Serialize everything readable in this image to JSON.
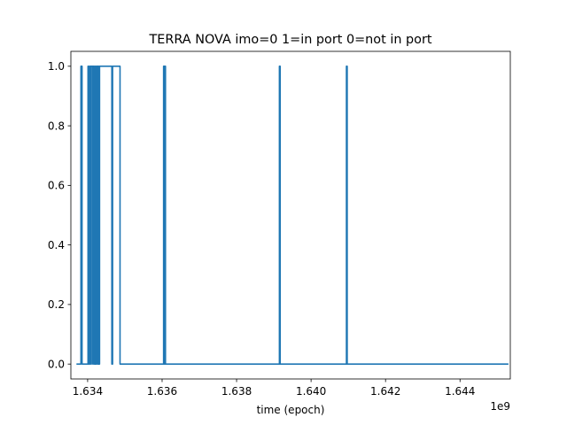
{
  "chart_data": {
    "type": "line",
    "title": "TERRA NOVA imo=0 1=in port 0=not in port",
    "xlabel": "time (epoch)",
    "ylabel": "",
    "x_offset_label": "1e9",
    "xlim": [
      1633550000,
      1645350000
    ],
    "ylim": [
      -0.05,
      1.05
    ],
    "grid": false,
    "x_ticks": [
      1634000000,
      1636000000,
      1638000000,
      1640000000,
      1642000000,
      1644000000
    ],
    "x_tick_labels": [
      "1.634",
      "1.636",
      "1.638",
      "1.640",
      "1.642",
      "1.644"
    ],
    "y_ticks": [
      0.0,
      0.2,
      0.4,
      0.6,
      0.8,
      1.0
    ],
    "y_tick_labels": [
      "0.0",
      "0.2",
      "0.4",
      "0.6",
      "0.8",
      "1.0"
    ],
    "series": [
      {
        "color": "#1f77b4",
        "x": [
          1633700000,
          1633820000,
          1633820000,
          1633850000,
          1633850000,
          1634010000,
          1634010000,
          1634030000,
          1634030000,
          1634060000,
          1634060000,
          1634090000,
          1634090000,
          1634100000,
          1634100000,
          1634140000,
          1634140000,
          1634150000,
          1634150000,
          1634180000,
          1634180000,
          1634200000,
          1634200000,
          1634220000,
          1634220000,
          1634240000,
          1634240000,
          1634270000,
          1634270000,
          1634280000,
          1634280000,
          1634300000,
          1634300000,
          1634320000,
          1634320000,
          1634330000,
          1634330000,
          1634650000,
          1634650000,
          1634670000,
          1634670000,
          1634870000,
          1634870000,
          1636040000,
          1636040000,
          1636050000,
          1636050000,
          1636060000,
          1636060000,
          1636070000,
          1636070000,
          1636080000,
          1636080000,
          1636090000,
          1636090000,
          1639150000,
          1639150000,
          1639170000,
          1639170000,
          1640950000,
          1640950000,
          1640970000,
          1640970000,
          1645300000
        ],
        "y": [
          0,
          0,
          1,
          1,
          0,
          0,
          1,
          1,
          0,
          0,
          1,
          1,
          0,
          0,
          1,
          1,
          0,
          0,
          1,
          1,
          0,
          0,
          1,
          1,
          0,
          0,
          1,
          1,
          0,
          0,
          1,
          1,
          0,
          0,
          1,
          1,
          1,
          1,
          0,
          0,
          1,
          1,
          0,
          0,
          1,
          1,
          0,
          0,
          1,
          1,
          0,
          0,
          1,
          1,
          0,
          0,
          1,
          1,
          0,
          0,
          1,
          1,
          0,
          0
        ]
      }
    ]
  }
}
